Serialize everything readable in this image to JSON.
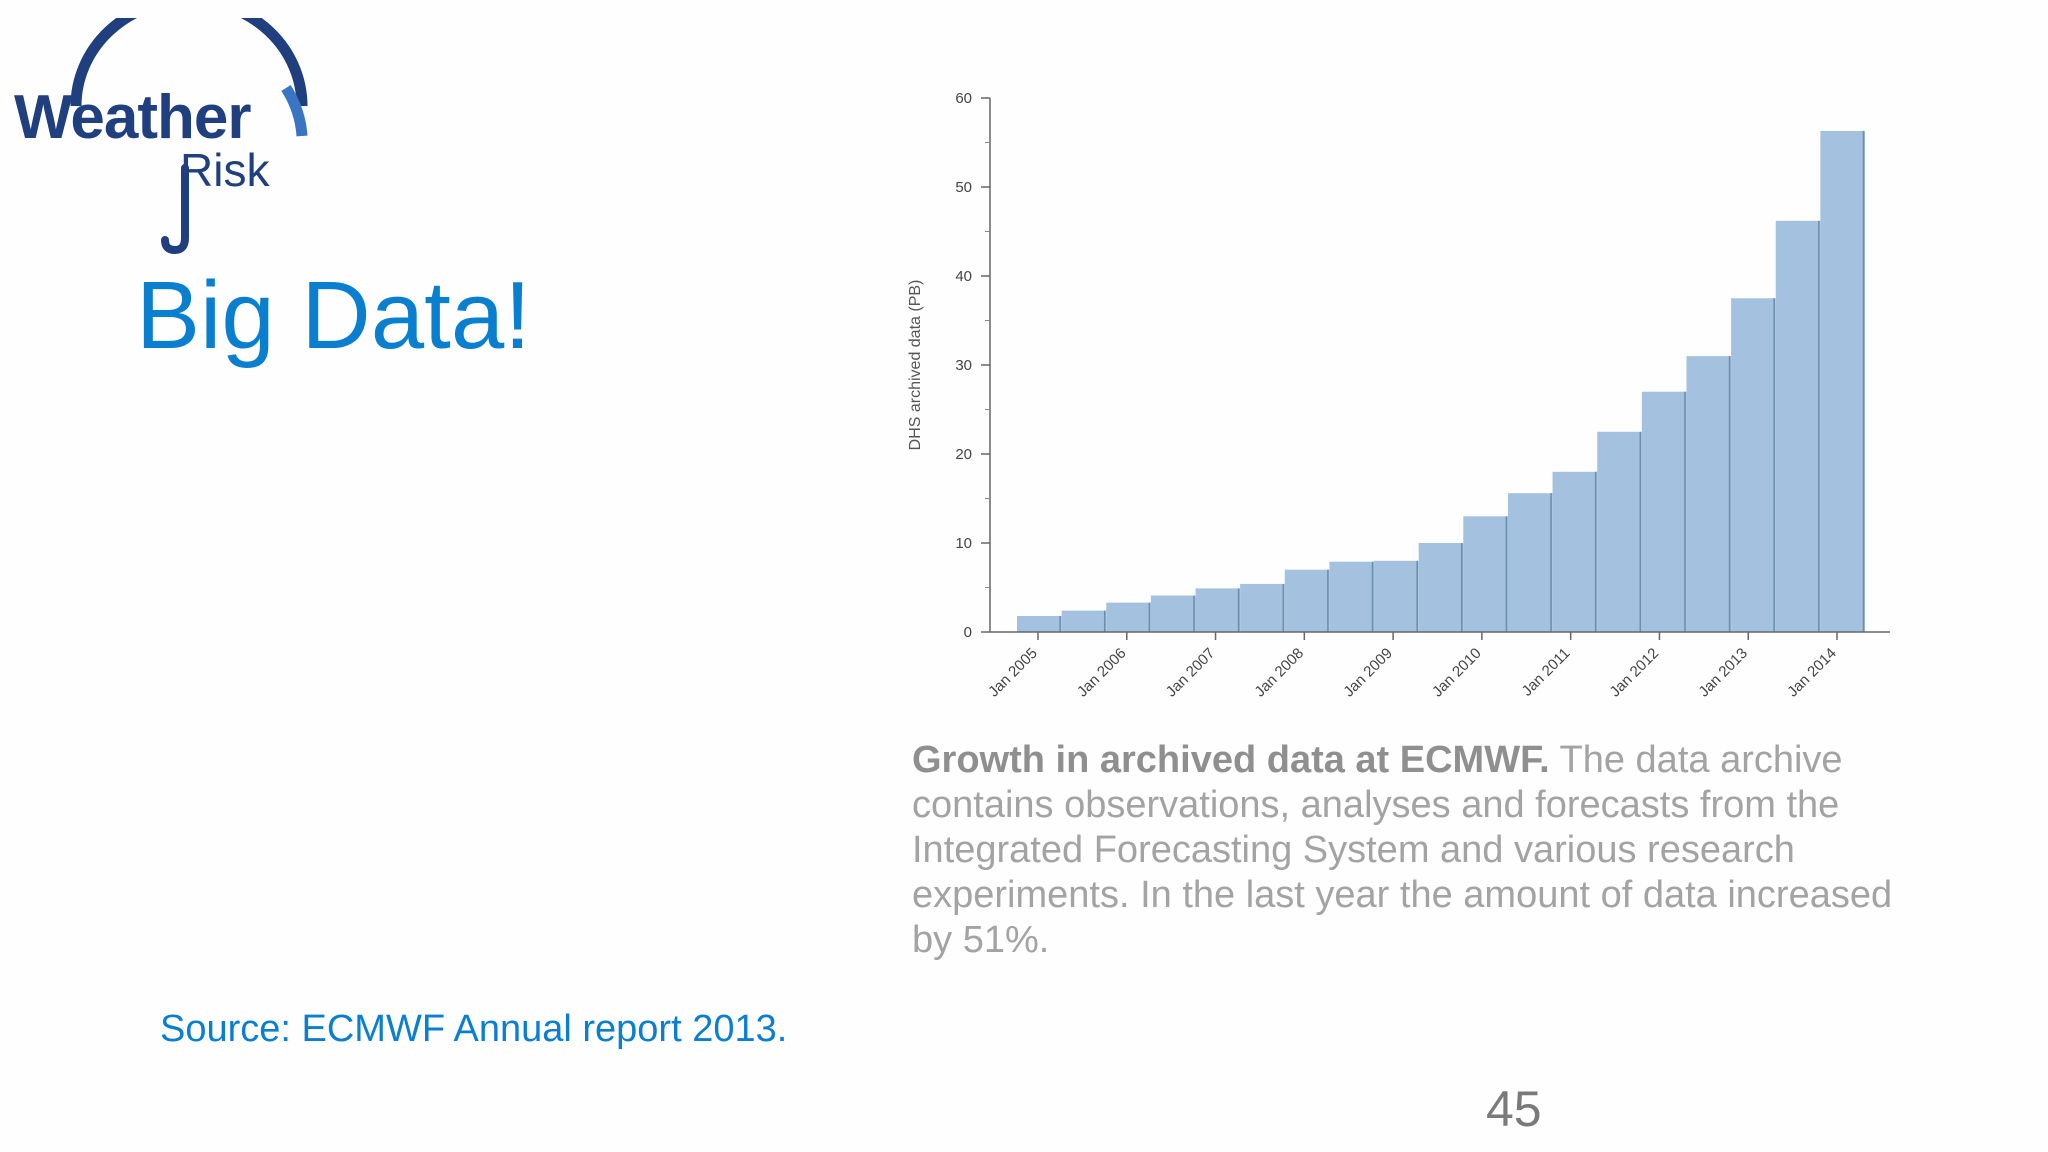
{
  "logo": {
    "line1": "Weather",
    "line2": "Risk",
    "icon": "umbrella-icon",
    "color_primary": "#1f3f7e",
    "color_accent": "#3a75c4"
  },
  "slide": {
    "title": "Big Data!",
    "source": "Source: ECMWF  Annual report 2013.",
    "page_number": "45",
    "accent_color": "#0a7fd0"
  },
  "caption": {
    "bold": "Growth in archived data at ECMWF.",
    "text": " The data archive contains observations, analyses and forecasts from the Integrated Forecasting System and various research experiments. In the last year the amount of data increased by 51%."
  },
  "chart_data": {
    "type": "bar",
    "title": "",
    "xlabel": "",
    "ylabel": "DHS archived data (PB)",
    "ylim": [
      0,
      60
    ],
    "yticks": [
      0,
      10,
      20,
      30,
      40,
      50,
      60
    ],
    "xtick_labels": [
      "Jan 2005",
      "Jan 2006",
      "Jan 2007",
      "Jan 2008",
      "Jan 2009",
      "Jan 2010",
      "Jan 2011",
      "Jan 2012",
      "Jan 2013",
      "Jan 2014"
    ],
    "values": [
      1.8,
      2.4,
      3.3,
      4.1,
      4.9,
      5.4,
      7.0,
      7.9,
      8.0,
      10.0,
      13.0,
      15.6,
      18.0,
      22.5,
      27.0,
      31.0,
      37.5,
      46.2,
      56.3
    ],
    "bar_color": "#a4c2df",
    "grid": false,
    "legend": "none"
  }
}
